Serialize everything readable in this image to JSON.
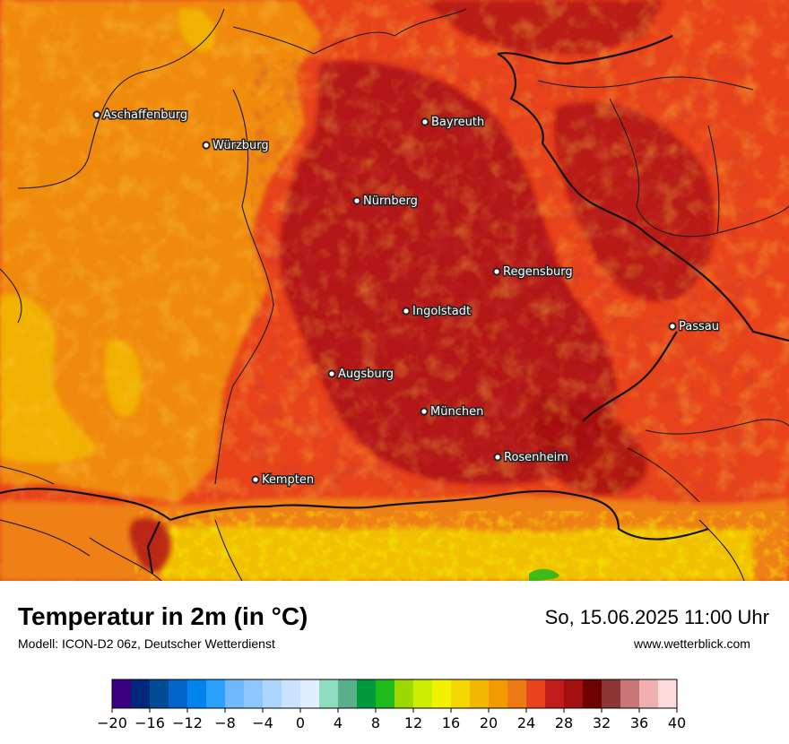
{
  "title": "Temperatur in 2m (in °C)",
  "subtitle": "Modell: ICON-D2 06z, Deutscher Wetterdienst",
  "datetime": "So, 15.06.2025 11:00 Uhr",
  "website": "www.wetterblick.com",
  "cities": [
    {
      "name": "Aschaffenburg"
    },
    {
      "name": "Würzburg"
    },
    {
      "name": "Bayreuth"
    },
    {
      "name": "Nürnberg"
    },
    {
      "name": "Regensburg"
    },
    {
      "name": "Ingolstadt"
    },
    {
      "name": "Passau"
    },
    {
      "name": "Augsburg"
    },
    {
      "name": "München"
    },
    {
      "name": "Rosenheim"
    },
    {
      "name": "Kempten"
    }
  ],
  "legend": {
    "min": -20,
    "max": 40,
    "step": 2,
    "tick_labels": [
      "−20",
      "−16",
      "−12",
      "−8",
      "−4",
      "0",
      "4",
      "8",
      "12",
      "16",
      "20",
      "24",
      "28",
      "32",
      "36",
      "40"
    ],
    "colors": [
      "#3b0082",
      "#00287a",
      "#004c97",
      "#0064c8",
      "#0083ef",
      "#2aa0ff",
      "#70b8ff",
      "#8ec7ff",
      "#add6ff",
      "#c9e3ff",
      "#e0efff",
      "#90dcc0",
      "#5aae8a",
      "#009a3d",
      "#1fba1c",
      "#9bd900",
      "#cdee00",
      "#f2f200",
      "#f2d700",
      "#f2b800",
      "#f29a00",
      "#ed7a12",
      "#e8431a",
      "#c01c1c",
      "#a30f0f",
      "#6f0000",
      "#8c3636",
      "#c87676",
      "#f0b0b0",
      "#ffdcdc"
    ]
  },
  "colors": {
    "border": "#1a1a1a",
    "label_text": "#ffffff",
    "label_halo": "#222222"
  }
}
